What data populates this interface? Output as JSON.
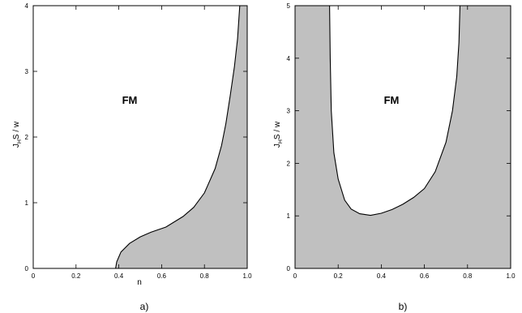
{
  "chart_data": [
    {
      "type": "area",
      "xlim": [
        0,
        1.0
      ],
      "ylim": [
        0,
        4
      ],
      "x_ticks": [
        "0",
        "0.2",
        "0.4",
        "0.6",
        "0.8",
        "1.0"
      ],
      "y_ticks": [
        "0",
        "1",
        "2",
        "3",
        "4"
      ],
      "xlabel": "n",
      "ylabel_main": "J",
      "ylabel_sub": "H",
      "ylabel_rest": "S / w",
      "region_label": "FM",
      "caption": "a)",
      "fill_color": "#c0c0c0",
      "boundary": [
        {
          "x": 0.385,
          "y": 0.0
        },
        {
          "x": 0.39,
          "y": 0.1
        },
        {
          "x": 0.41,
          "y": 0.25
        },
        {
          "x": 0.45,
          "y": 0.38
        },
        {
          "x": 0.5,
          "y": 0.48
        },
        {
          "x": 0.55,
          "y": 0.55
        },
        {
          "x": 0.62,
          "y": 0.63
        },
        {
          "x": 0.7,
          "y": 0.79
        },
        {
          "x": 0.75,
          "y": 0.93
        },
        {
          "x": 0.8,
          "y": 1.15
        },
        {
          "x": 0.85,
          "y": 1.52
        },
        {
          "x": 0.88,
          "y": 1.87
        },
        {
          "x": 0.9,
          "y": 2.2
        },
        {
          "x": 0.92,
          "y": 2.62
        },
        {
          "x": 0.94,
          "y": 3.07
        },
        {
          "x": 0.955,
          "y": 3.5
        },
        {
          "x": 0.965,
          "y": 4.0
        }
      ]
    },
    {
      "type": "area",
      "xlim": [
        0,
        1.0
      ],
      "ylim": [
        0,
        5
      ],
      "x_ticks": [
        "0",
        "0.2",
        "0.4",
        "0.6",
        "0.8",
        "1.0"
      ],
      "y_ticks": [
        "0",
        "1",
        "2",
        "3",
        "4",
        "5"
      ],
      "xlabel": "",
      "ylabel_main": "J",
      "ylabel_sub": "H",
      "ylabel_rest": "S / w",
      "region_label": "FM",
      "caption": "b)",
      "fill_color": "#c0c0c0",
      "boundary": [
        {
          "x": 0.16,
          "y": 5.0
        },
        {
          "x": 0.163,
          "y": 4.0
        },
        {
          "x": 0.168,
          "y": 3.0
        },
        {
          "x": 0.18,
          "y": 2.2
        },
        {
          "x": 0.2,
          "y": 1.7
        },
        {
          "x": 0.23,
          "y": 1.3
        },
        {
          "x": 0.26,
          "y": 1.13
        },
        {
          "x": 0.3,
          "y": 1.04
        },
        {
          "x": 0.35,
          "y": 1.01
        },
        {
          "x": 0.4,
          "y": 1.05
        },
        {
          "x": 0.45,
          "y": 1.12
        },
        {
          "x": 0.5,
          "y": 1.22
        },
        {
          "x": 0.55,
          "y": 1.35
        },
        {
          "x": 0.6,
          "y": 1.52
        },
        {
          "x": 0.65,
          "y": 1.84
        },
        {
          "x": 0.7,
          "y": 2.4
        },
        {
          "x": 0.73,
          "y": 3.0
        },
        {
          "x": 0.75,
          "y": 3.65
        },
        {
          "x": 0.76,
          "y": 4.3
        },
        {
          "x": 0.765,
          "y": 5.0
        }
      ]
    }
  ]
}
